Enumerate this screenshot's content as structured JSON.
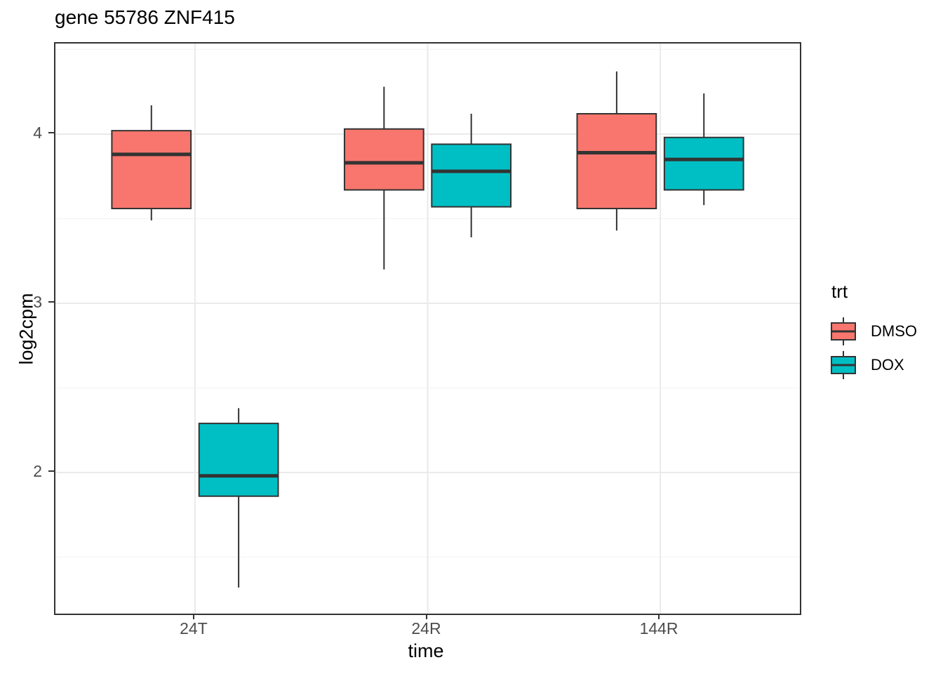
{
  "chart_data": {
    "type": "boxplot",
    "title": "gene 55786 ZNF415",
    "xlabel": "time",
    "ylabel": "log2cpm",
    "categories": [
      "24T",
      "24R",
      "144R"
    ],
    "series": [
      {
        "name": "DMSO",
        "color": "#F8766D",
        "boxes": [
          {
            "whisker_low": 3.49,
            "q1": 3.56,
            "median": 3.88,
            "q3": 4.02,
            "whisker_high": 4.17
          },
          {
            "whisker_low": 3.2,
            "q1": 3.67,
            "median": 3.83,
            "q3": 4.03,
            "whisker_high": 4.28
          },
          {
            "whisker_low": 3.43,
            "q1": 3.56,
            "median": 3.89,
            "q3": 4.12,
            "whisker_high": 4.37
          }
        ]
      },
      {
        "name": "DOX",
        "color": "#00BFC4",
        "boxes": [
          {
            "whisker_low": 1.32,
            "q1": 1.86,
            "median": 1.98,
            "q3": 2.29,
            "whisker_high": 2.38
          },
          {
            "whisker_low": 3.39,
            "q1": 3.57,
            "median": 3.78,
            "q3": 3.94,
            "whisker_high": 4.12
          },
          {
            "whisker_low": 3.58,
            "q1": 3.67,
            "median": 3.85,
            "q3": 3.98,
            "whisker_high": 4.24
          }
        ]
      }
    ],
    "y_axis": {
      "ticks": [
        4,
        3,
        2
      ],
      "tick_labels": [
        "4",
        "3",
        "2"
      ],
      "minor_ticks": [
        4.5,
        3.5,
        2.5,
        1.5
      ],
      "ylim": [
        1.166,
        4.535
      ]
    },
    "x_axis": {
      "tick_labels": [
        "24T",
        "24R",
        "144R"
      ]
    },
    "legend": {
      "title": "trt",
      "position": "right",
      "entries": [
        {
          "label": "DMSO",
          "color": "#F8766D"
        },
        {
          "label": "DOX",
          "color": "#00BFC4"
        }
      ]
    },
    "style": {
      "box_border_color": "#333333",
      "median_color": "#333333",
      "whisker_color": "#333333",
      "panel_border_color": "#333333",
      "grid_major_color": "#EAEAEA",
      "grid_minor_color": "#F2F2F2",
      "tick_label_color": "#4D4D4D",
      "grid": "on"
    }
  }
}
